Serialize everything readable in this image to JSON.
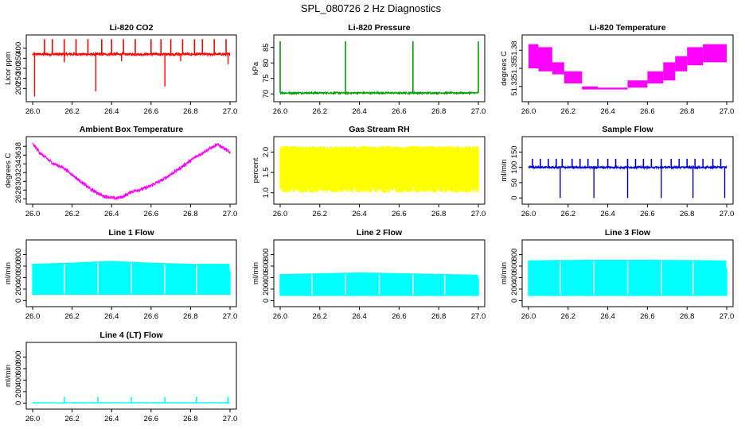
{
  "title": "SPL_080726  2 Hz Diagnostics",
  "chart_data": [
    {
      "id": "co2",
      "type": "line",
      "title": "Li-820 CO2",
      "ylabel": "Licor ppm",
      "color": "#ff0000",
      "xlim": [
        26.0,
        27.0
      ],
      "ylim": [
        150,
        450
      ],
      "xticks": [
        26.0,
        26.2,
        26.4,
        26.6,
        26.8,
        27.0
      ],
      "yticks": [
        200,
        250,
        300,
        350,
        400
      ],
      "series": {
        "kind": "spiky",
        "base": 370,
        "noise": 6,
        "up": [
          26.06,
          26.1,
          26.16,
          26.22,
          26.28,
          26.35,
          26.4,
          26.46,
          26.52,
          26.6,
          26.65,
          26.7,
          26.76,
          26.82,
          26.86,
          26.92,
          26.98
        ],
        "upTo": 445,
        "down": [
          [
            26.01,
            160
          ],
          [
            26.16,
            330
          ],
          [
            26.32,
            185
          ],
          [
            26.45,
            335
          ],
          [
            26.67,
            210
          ],
          [
            26.75,
            335
          ],
          [
            26.99,
            320
          ]
        ]
      }
    },
    {
      "id": "pressure",
      "type": "line",
      "title": "Li-820 Pressure",
      "ylabel": "kPa",
      "color": "#00a000",
      "xlim": [
        26.0,
        27.0
      ],
      "ylim": [
        68.5,
        88.0
      ],
      "xticks": [
        26.0,
        26.2,
        26.4,
        26.6,
        26.8,
        27.0
      ],
      "yticks": [
        70,
        75,
        80,
        85
      ],
      "series": {
        "kind": "spiky",
        "base": 70.3,
        "noise": 0.25,
        "up": [
          26.0,
          26.33,
          26.67,
          27.0
        ],
        "upTo": 87.0,
        "down": []
      }
    },
    {
      "id": "licortemp",
      "type": "step",
      "title": "Li-820 Temperature",
      "ylabel": "degrees C",
      "color": "#ff00ff",
      "xlim": [
        26.0,
        27.0
      ],
      "ylim": [
        51.3,
        51.4
      ],
      "xticks": [
        26.0,
        26.2,
        26.4,
        26.6,
        26.8,
        27.0
      ],
      "yticks": [
        51.32,
        51.35,
        51.38
      ],
      "levels": [
        [
          26.0,
          51.39,
          51.35
        ],
        [
          26.05,
          51.385,
          51.345
        ],
        [
          26.12,
          51.36,
          51.34
        ],
        [
          26.18,
          51.345,
          51.325
        ],
        [
          26.27,
          51.32,
          51.315
        ],
        [
          26.35,
          51.318
        ],
        [
          26.5,
          51.33,
          51.318
        ],
        [
          26.6,
          51.345,
          51.325
        ],
        [
          26.68,
          51.36,
          51.33
        ],
        [
          26.74,
          51.37,
          51.345
        ],
        [
          26.8,
          51.385,
          51.355
        ],
        [
          26.88,
          51.39,
          51.36
        ]
      ]
    },
    {
      "id": "boxtemp",
      "type": "line",
      "title": "Ambient Box Temperature",
      "ylabel": "degrees C",
      "color": "#ff00ff",
      "xlim": [
        26.0,
        27.0
      ],
      "ylim": [
        25.5,
        39.5
      ],
      "xticks": [
        26.0,
        26.2,
        26.4,
        26.6,
        26.8,
        27.0
      ],
      "yticks": [
        26,
        28,
        30,
        32,
        34,
        36,
        38
      ],
      "series": {
        "kind": "curve",
        "points": [
          [
            26.0,
            38.6
          ],
          [
            26.04,
            36.4
          ],
          [
            26.1,
            34.2
          ],
          [
            26.16,
            33.0
          ],
          [
            26.22,
            30.8
          ],
          [
            26.3,
            28.0
          ],
          [
            26.36,
            26.6
          ],
          [
            26.42,
            26.1
          ],
          [
            26.46,
            26.5
          ],
          [
            26.5,
            27.6
          ],
          [
            26.58,
            28.6
          ],
          [
            26.66,
            30.4
          ],
          [
            26.74,
            32.8
          ],
          [
            26.82,
            35.4
          ],
          [
            26.9,
            37.6
          ],
          [
            26.94,
            38.4
          ],
          [
            26.97,
            37.6
          ],
          [
            27.0,
            36.6
          ]
        ],
        "noise": 0.35
      }
    },
    {
      "id": "rh",
      "type": "band",
      "title": "Gas Stream RH",
      "ylabel": "percent",
      "color": "#ffff00",
      "xlim": [
        26.0,
        27.0
      ],
      "ylim": [
        0.8,
        2.3
      ],
      "xticks": [
        26.0,
        26.2,
        26.4,
        26.6,
        26.8,
        27.0
      ],
      "yticks": [
        1.0,
        1.5,
        2.0
      ],
      "lo": 1.0,
      "hi": 2.15,
      "loSpread": 0.18,
      "hiSpread": 0.1
    },
    {
      "id": "sampleflow",
      "type": "line",
      "title": "Sample Flow",
      "ylabel": "ml/min",
      "color": "#0000dd",
      "xlim": [
        26.0,
        27.0
      ],
      "ylim": [
        -10,
        190
      ],
      "xticks": [
        26.0,
        26.2,
        26.4,
        26.6,
        26.8,
        27.0
      ],
      "yticks": [
        0,
        50,
        100,
        150
      ],
      "series": {
        "kind": "spiky",
        "base": 100,
        "noise": 3,
        "up": [
          26.02,
          26.06,
          26.1,
          26.14,
          26.17,
          26.22,
          26.26,
          26.3,
          26.35,
          26.4,
          26.44,
          26.5,
          26.54,
          26.58,
          26.62,
          26.67,
          26.72,
          26.76,
          26.8,
          26.84,
          26.88,
          26.93,
          26.97
        ],
        "upTo": 128,
        "down": [
          [
            26.16,
            0
          ],
          [
            26.33,
            0
          ],
          [
            26.5,
            0
          ],
          [
            26.67,
            0
          ],
          [
            26.83,
            0
          ],
          [
            26.99,
            0
          ]
        ]
      }
    },
    {
      "id": "line1",
      "type": "pulse",
      "title": "Line 1 Flow",
      "ylabel": "ml/min",
      "color": "#00ffff",
      "xlim": [
        26.0,
        27.0
      ],
      "ylim": [
        -50,
        1000
      ],
      "xticks": [
        26.0,
        26.2,
        26.4,
        26.6,
        26.8,
        27.0
      ],
      "yticks": [
        0,
        200,
        400,
        600,
        800
      ],
      "lo": 100,
      "hi": [
        [
          26.0,
          640
        ],
        [
          26.2,
          660
        ],
        [
          26.4,
          690
        ],
        [
          26.6,
          660
        ],
        [
          26.8,
          640
        ],
        [
          26.99,
          640
        ]
      ],
      "gaps": [
        26.16,
        26.33,
        26.5,
        26.67,
        26.83
      ],
      "tail": [
        27.0,
        520
      ]
    },
    {
      "id": "line2",
      "type": "pulse",
      "title": "Line 2 Flow",
      "ylabel": "ml/min",
      "color": "#00ffff",
      "xlim": [
        26.0,
        27.0
      ],
      "ylim": [
        -50,
        1000
      ],
      "xticks": [
        26.0,
        26.2,
        26.4,
        26.6,
        26.8,
        27.0
      ],
      "yticks": [
        0,
        200,
        400,
        600,
        800
      ],
      "lo": 80,
      "hi": [
        [
          26.0,
          460
        ],
        [
          26.4,
          490
        ],
        [
          26.7,
          470
        ],
        [
          27.0,
          450
        ]
      ],
      "gaps": [
        26.16,
        26.33,
        26.5,
        26.67,
        26.83
      ],
      "tail": [
        27.0,
        400
      ]
    },
    {
      "id": "line3",
      "type": "pulse",
      "title": "Line 3 Flow",
      "ylabel": "ml/min",
      "color": "#00ffff",
      "xlim": [
        26.0,
        27.0
      ],
      "ylim": [
        -50,
        1000
      ],
      "xticks": [
        26.0,
        26.2,
        26.4,
        26.6,
        26.8,
        27.0
      ],
      "yticks": [
        0,
        200,
        400,
        600,
        800
      ],
      "lo": 80,
      "hi": [
        [
          26.0,
          700
        ],
        [
          26.3,
          710
        ],
        [
          26.6,
          710
        ],
        [
          27.0,
          700
        ]
      ],
      "gaps": [
        26.16,
        26.33,
        26.5,
        26.67,
        26.83
      ],
      "tail": [
        27.0,
        560
      ]
    },
    {
      "id": "line4",
      "type": "line",
      "title": "Line 4 (LT) Flow",
      "ylabel": "ml/min",
      "color": "#00ffff",
      "xlim": [
        26.0,
        27.0
      ],
      "ylim": [
        -50,
        1000
      ],
      "xticks": [
        26.0,
        26.2,
        26.4,
        26.6,
        26.8,
        27.0
      ],
      "yticks": [
        0,
        200,
        400,
        600,
        800
      ],
      "series": {
        "kind": "spiky",
        "base": 5,
        "noise": 4,
        "up": [
          26.16,
          26.33,
          26.5,
          26.67,
          26.83,
          26.99
        ],
        "upTo": 110,
        "down": []
      }
    }
  ]
}
